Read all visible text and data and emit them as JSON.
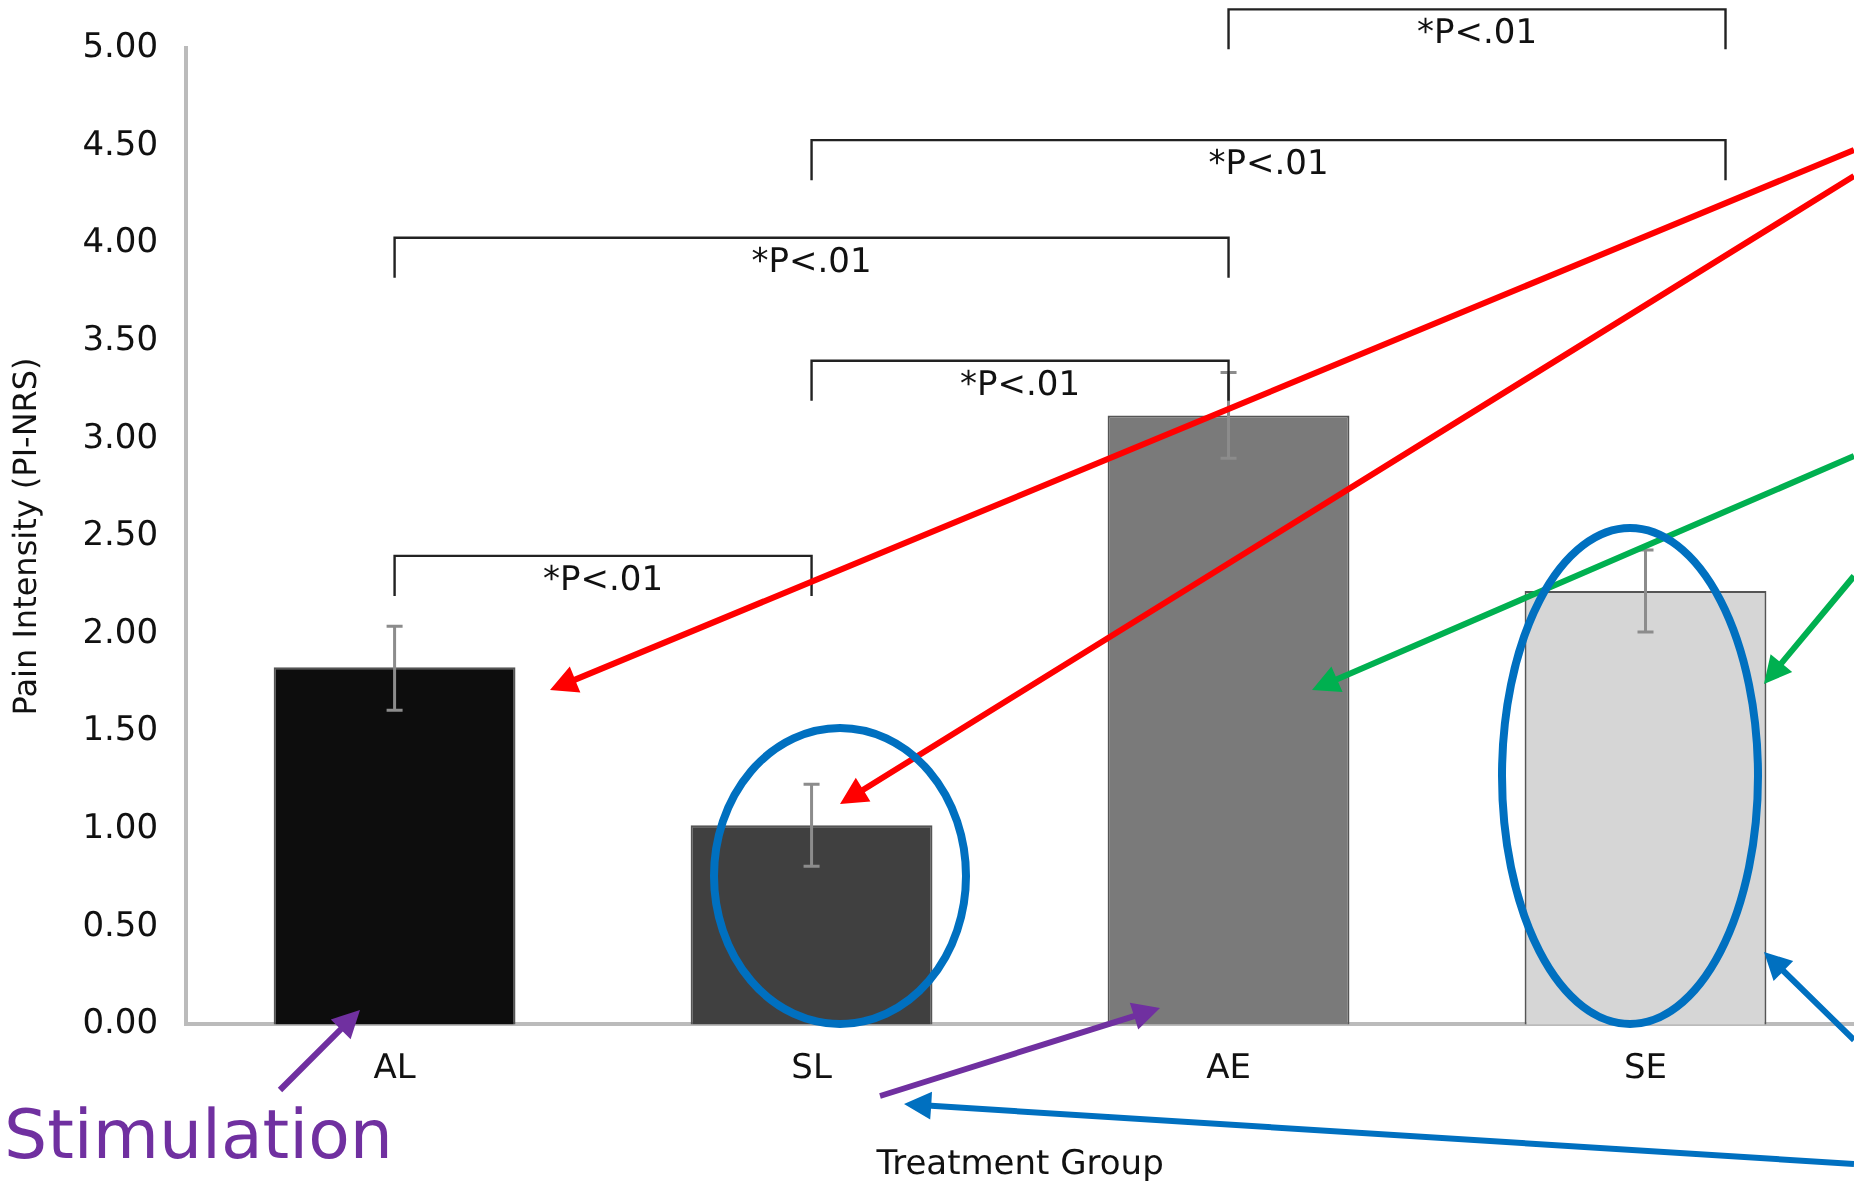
{
  "chart_data": {
    "type": "bar",
    "xlabel": "Treatment Group",
    "ylabel": "Pain Intensity (PI-NRS)",
    "categories": [
      "AL",
      "SL",
      "AE",
      "SE"
    ],
    "values": [
      1.83,
      1.02,
      3.12,
      2.22
    ],
    "colors": [
      "#0d0d0d",
      "#404040",
      "#7a7a7a",
      "#d6d6d6"
    ],
    "errors": [
      [
        1.61,
        2.04
      ],
      [
        0.81,
        1.23
      ],
      [
        2.9,
        3.34
      ],
      [
        2.01,
        2.43
      ]
    ],
    "ylim": [
      0,
      5
    ],
    "yticks": [
      {
        "value": 0,
        "label": "0.00"
      },
      {
        "value": 0.5,
        "label": "0.50"
      },
      {
        "value": 1,
        "label": "1.00"
      },
      {
        "value": 1.5,
        "label": "1.50"
      },
      {
        "value": 2,
        "label": "2.00"
      },
      {
        "value": 2.5,
        "label": "2.50"
      },
      {
        "value": 3,
        "label": "3.00"
      },
      {
        "value": 3.5,
        "label": "3.50"
      },
      {
        "value": 4,
        "label": "4.00"
      },
      {
        "value": 4.5,
        "label": "4.50"
      },
      {
        "value": 5,
        "label": "5.00"
      }
    ],
    "annotations": [
      "*P<.01",
      "*P<.01",
      "*P<.01",
      "*P<.01",
      "*P<.01",
      "Stimulation"
    ],
    "grid": false,
    "legend": false
  }
}
